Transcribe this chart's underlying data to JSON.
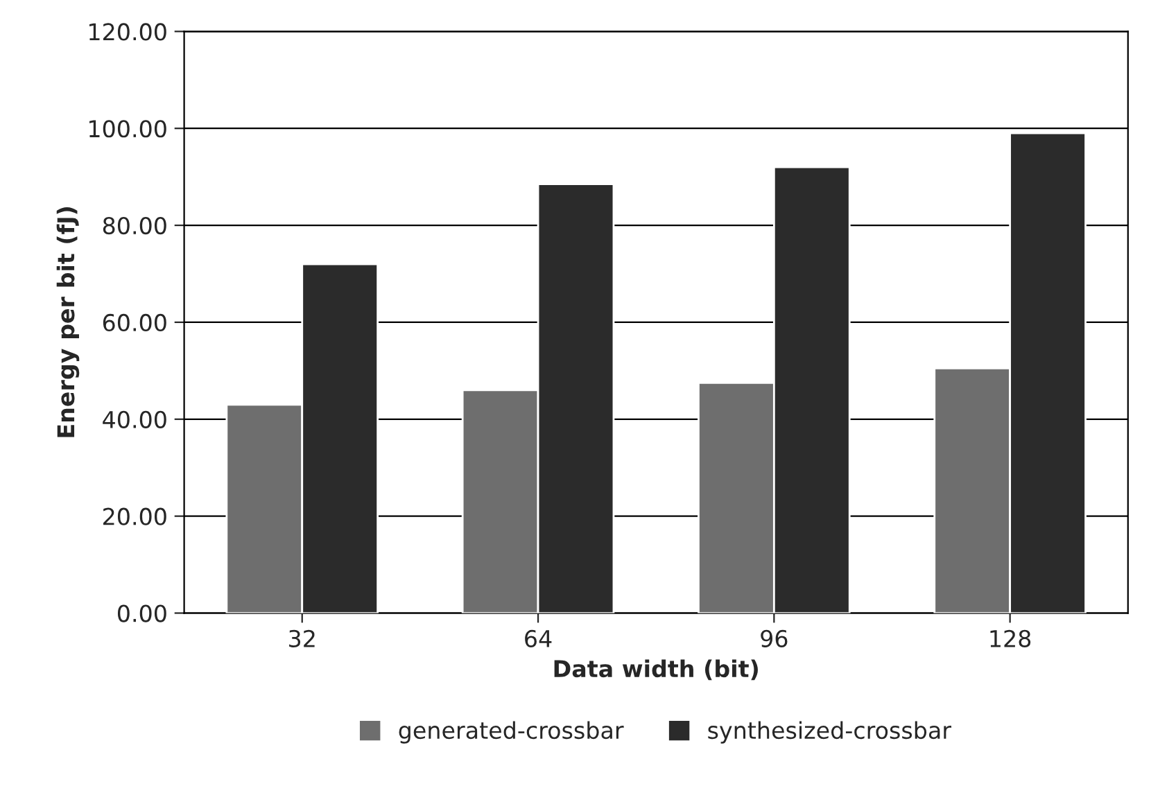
{
  "chart_data": {
    "type": "bar",
    "xlabel": "Data width (bit)",
    "ylabel": "Energy per bit (fJ)",
    "categories": [
      "32",
      "64",
      "96",
      "128"
    ],
    "series": [
      {
        "name": "generated-crossbar",
        "color": "#6e6e6e",
        "values": [
          43.0,
          46.0,
          47.5,
          50.5
        ]
      },
      {
        "name": "synthesized-crossbar",
        "color": "#2b2b2b",
        "values": [
          72.0,
          88.5,
          92.0,
          99.0
        ]
      }
    ],
    "ylim": [
      0,
      120
    ],
    "yticks": [
      {
        "value": 0,
        "label": "0.00"
      },
      {
        "value": 20,
        "label": "20.00"
      },
      {
        "value": 40,
        "label": "40.00"
      },
      {
        "value": 60,
        "label": "60.00"
      },
      {
        "value": 80,
        "label": "80.00"
      },
      {
        "value": 100,
        "label": "100.00"
      },
      {
        "value": 120,
        "label": "120.00"
      }
    ],
    "grid": "y",
    "legend": "bottom"
  }
}
